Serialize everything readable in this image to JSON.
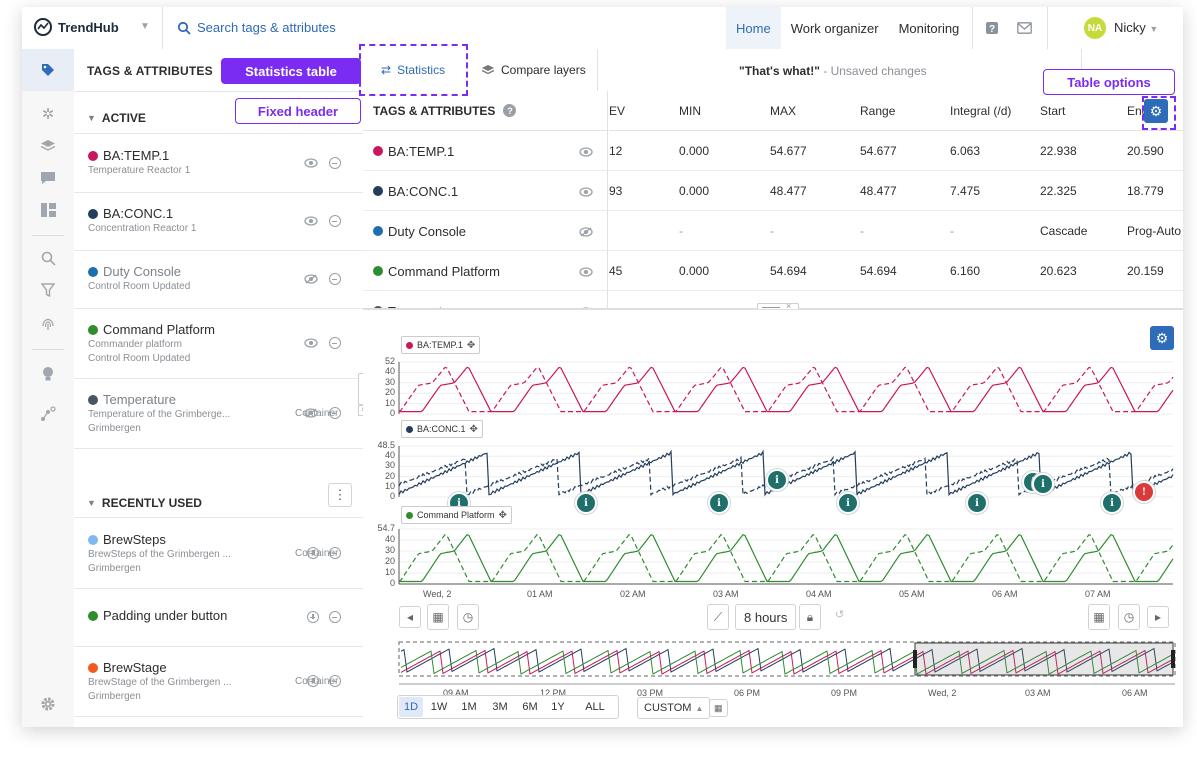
{
  "app": {
    "name": "TrendHub",
    "search_placeholder": "Search tags & attributes"
  },
  "nav": [
    {
      "label": "Home"
    },
    {
      "label": "Work organizer"
    },
    {
      "label": "Monitoring"
    }
  ],
  "user": {
    "initials": "NA",
    "name": "Nicky"
  },
  "tags_panel": {
    "title": "TAGS & ATTRIBUTES",
    "active_label": "ACTIVE",
    "recent_label": "RECENTLY USED",
    "active": [
      {
        "name": "BA:TEMP.1",
        "sub": "Temperature Reactor 1",
        "color": "#c8185e"
      },
      {
        "name": "BA:CONC.1",
        "sub": "Concentration Reactor 1",
        "color": "#233d5c"
      },
      {
        "name": "Duty Console",
        "sub": "Control Room Updated",
        "color": "#1c6fb0"
      },
      {
        "name": "Command Platform",
        "sub": "Commander platform",
        "sub2": "Control Room Updated",
        "color": "#2f8c2f"
      },
      {
        "name": "Temperature",
        "sub": "Temperature of the Grimberge...",
        "sub2": "Grimbergen",
        "container": "Container",
        "color": "#4a5563"
      }
    ],
    "recent": [
      {
        "name": "BrewSteps",
        "sub": "BrewSteps of the Grimbergen ...",
        "sub2": "Grimbergen",
        "container": "Container",
        "color": "#7fb7ee"
      },
      {
        "name": "Padding under button",
        "color": "#2f8c2f"
      },
      {
        "name": "BrewStage",
        "sub": "BrewStage of the Grimbergen ...",
        "sub2": "Grimbergen",
        "container": "Container",
        "color": "#f2581f"
      }
    ]
  },
  "callouts": {
    "statistics_table": "Statistics table",
    "fixed_header": "Fixed header",
    "table_options": "Table options"
  },
  "tabs": {
    "statistics": "Statistics",
    "compare": "Compare layers"
  },
  "document": {
    "title": "\"That's what!\"",
    "status": " - Unsaved changes"
  },
  "stats": {
    "fixed_header": "TAGS & ATTRIBUTES",
    "columns": [
      "EV",
      "MIN",
      "MAX",
      "Range",
      "Integral (/d)",
      "Start",
      "End"
    ],
    "rows": [
      {
        "name": "BA:TEMP.1",
        "cells": [
          "12",
          "0.000",
          "54.677",
          "54.677",
          "6.063",
          "22.938",
          "20.590"
        ]
      },
      {
        "name": "BA:CONC.1",
        "cells": [
          "93",
          "0.000",
          "48.477",
          "48.477",
          "7.475",
          "22.325",
          "18.779"
        ]
      },
      {
        "name": "Duty Console",
        "cells": [
          "",
          "-",
          "-",
          "-",
          "-",
          "Cascade",
          "Prog-Auto"
        ]
      },
      {
        "name": "Command Platform",
        "cells": [
          "45",
          "0.000",
          "54.694",
          "54.694",
          "6.160",
          "20.623",
          "20.159"
        ]
      },
      {
        "name": "Temperature",
        "cells": [
          "",
          "-",
          "-",
          "-",
          "-",
          "-",
          "-"
        ]
      }
    ]
  },
  "charts": [
    {
      "label": "BA:TEMP.1",
      "y_ticks": [
        "52",
        "40",
        "30",
        "20",
        "10",
        "0"
      ]
    },
    {
      "label": "BA:CONC.1",
      "y_ticks": [
        "48.5",
        "40",
        "30",
        "20",
        "10",
        "0"
      ]
    },
    {
      "label": "Command Platform",
      "y_ticks": [
        "54.7",
        "40",
        "30",
        "20",
        "10",
        "0"
      ]
    }
  ],
  "x_ticks": [
    "Wed, 2",
    "01 AM",
    "02 AM",
    "03 AM",
    "04 AM",
    "05 AM",
    "06 AM",
    "07 AM"
  ],
  "duration": "8 hours",
  "overview_ticks": [
    "09 AM",
    "12 PM",
    "03 PM",
    "06 PM",
    "09 PM",
    "Wed, 2",
    "03 AM",
    "06 AM"
  ],
  "ranges": [
    "1D",
    "1W",
    "1M",
    "3M",
    "6M",
    "1Y",
    "ALL"
  ],
  "custom_label": "CUSTOM"
}
